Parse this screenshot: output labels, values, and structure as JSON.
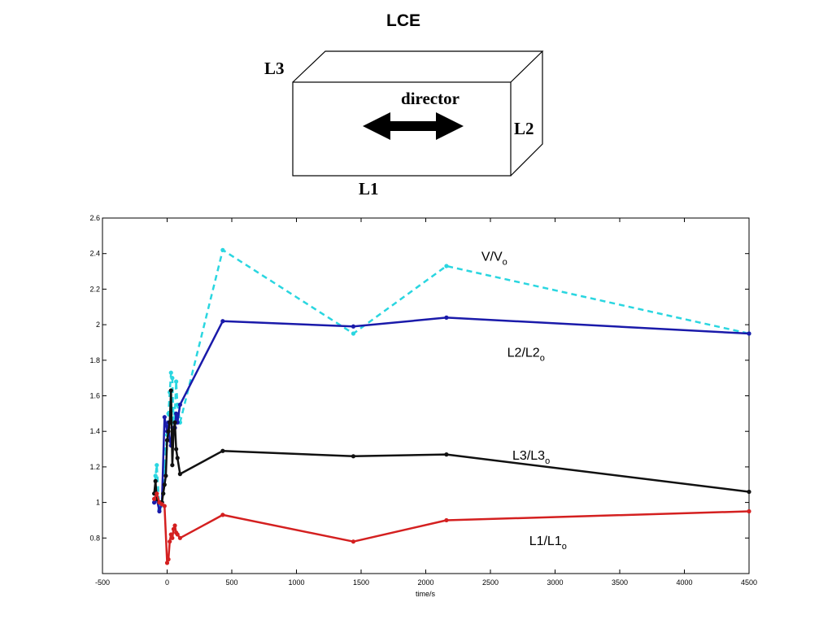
{
  "diagram": {
    "title": "LCE",
    "labels": {
      "l3": "L3",
      "l2": "L2",
      "l1": "L1",
      "director": "director"
    }
  },
  "chart_data": {
    "type": "line",
    "title": "",
    "xlabel": "time/s",
    "ylabel": "",
    "xlim": [
      -500,
      4500
    ],
    "ylim": [
      0.6,
      2.6
    ],
    "xticks": [
      -500,
      0,
      500,
      1000,
      1500,
      2000,
      2500,
      3000,
      3500,
      4000,
      4500
    ],
    "yticks": [
      0.8,
      1,
      1.2,
      1.4,
      1.6,
      1.8,
      2,
      2.2,
      2.4,
      2.6
    ],
    "grid": false,
    "series": [
      {
        "name": "V/V",
        "name_sub": "o",
        "color": "#2ad6e0",
        "style": "dashed",
        "label_at": [
          2430,
          2.36
        ],
        "x": [
          -100,
          -90,
          -80,
          -60,
          -50,
          -40,
          -30,
          -20,
          -10,
          0,
          10,
          20,
          30,
          40,
          50,
          60,
          70,
          80,
          100,
          430,
          1440,
          2160,
          4500
        ],
        "y": [
          1.0,
          1.15,
          1.21,
          0.96,
          0.98,
          1.0,
          1.05,
          1.2,
          1.3,
          1.38,
          1.5,
          1.62,
          1.73,
          1.7,
          1.45,
          1.5,
          1.68,
          1.55,
          1.45,
          2.42,
          1.95,
          2.33,
          1.95
        ]
      },
      {
        "name": "L2/L2",
        "name_sub": "o",
        "color": "#1a1aaa",
        "style": "solid",
        "label_at": [
          2630,
          1.82
        ],
        "x": [
          -100,
          -80,
          -60,
          -40,
          -20,
          0,
          10,
          20,
          30,
          40,
          50,
          60,
          70,
          80,
          100,
          430,
          1440,
          2160,
          4500
        ],
        "y": [
          1.0,
          1.02,
          0.95,
          1.0,
          1.48,
          1.4,
          1.45,
          1.35,
          1.32,
          1.42,
          1.4,
          1.42,
          1.5,
          1.45,
          1.55,
          2.02,
          1.99,
          2.04,
          1.95
        ]
      },
      {
        "name": "L3/L3",
        "name_sub": "o",
        "color": "#111111",
        "style": "solid",
        "label_at": [
          2670,
          1.24
        ],
        "x": [
          -100,
          -90,
          -80,
          -60,
          -50,
          -40,
          -30,
          -20,
          -10,
          0,
          10,
          20,
          30,
          40,
          50,
          60,
          70,
          80,
          100,
          430,
          1440,
          2160,
          4500
        ],
        "y": [
          1.05,
          1.12,
          1.02,
          1.0,
          1.0,
          1.0,
          1.05,
          1.1,
          1.15,
          1.35,
          1.4,
          1.45,
          1.63,
          1.21,
          1.4,
          1.45,
          1.3,
          1.25,
          1.16,
          1.29,
          1.26,
          1.27,
          1.06
        ]
      },
      {
        "name": "L1/L1",
        "name_sub": "o",
        "color": "#d42020",
        "style": "solid",
        "label_at": [
          2800,
          0.76
        ],
        "x": [
          -100,
          -80,
          -60,
          -40,
          -20,
          0,
          10,
          20,
          30,
          40,
          50,
          60,
          70,
          80,
          100,
          430,
          1440,
          2160,
          4500
        ],
        "y": [
          1.02,
          1.05,
          1.0,
          0.99,
          0.98,
          0.66,
          0.68,
          0.78,
          0.82,
          0.8,
          0.85,
          0.87,
          0.83,
          0.82,
          0.8,
          0.93,
          0.78,
          0.9,
          0.95
        ]
      }
    ]
  }
}
